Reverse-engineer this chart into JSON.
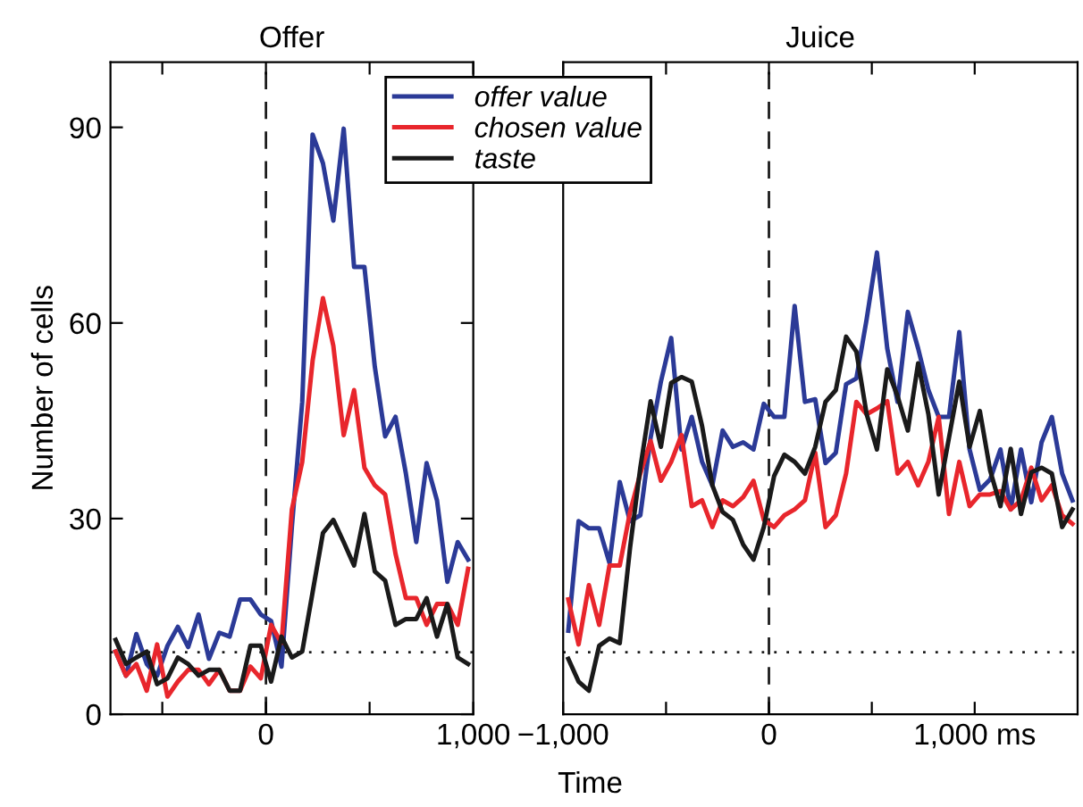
{
  "chart_data": [
    {
      "type": "line",
      "title": "Offer",
      "ylabel": "Number of cells",
      "xlabel": "Time",
      "x": [
        -725,
        -675,
        -625,
        -575,
        -525,
        -475,
        -425,
        -375,
        -325,
        -275,
        -225,
        -175,
        -125,
        -75,
        -25,
        25,
        75,
        125,
        175,
        225,
        275,
        325,
        375,
        425,
        475,
        525,
        575,
        625,
        675,
        725,
        775,
        825,
        875,
        925,
        975
      ],
      "series": [
        {
          "name": "offer value",
          "color": "#2b3a97",
          "values": [
            9.6,
            5.9,
            12.3,
            7.7,
            5.9,
            10.5,
            13.4,
            10.3,
            15.3,
            8.5,
            12.5,
            11.9,
            17.6,
            17.6,
            15.3,
            14.3,
            7.3,
            28.7,
            47.9,
            88.9,
            84.5,
            75.7,
            89.8,
            68.6,
            68.6,
            53.3,
            42.6,
            45.6,
            36.9,
            26.4,
            38.5,
            32.8,
            20.3,
            26.4,
            23.7
          ]
        },
        {
          "name": "chosen value",
          "color": "#e8262c",
          "values": [
            9.6,
            5.9,
            7.7,
            3.6,
            10.7,
            2.7,
            5.0,
            6.8,
            6.8,
            4.6,
            6.8,
            3.6,
            3.6,
            7.3,
            5.5,
            13.7,
            10.9,
            31.4,
            38.7,
            54.2,
            63.8,
            56.5,
            42.8,
            49.7,
            37.8,
            35.1,
            33.7,
            24.6,
            17.8,
            17.8,
            13.7,
            16.9,
            16.9,
            13.7,
            22.3
          ]
        },
        {
          "name": "taste",
          "color": "#1a1a1a",
          "values": [
            11.4,
            7.7,
            8.7,
            9.6,
            4.6,
            5.5,
            8.7,
            7.7,
            5.9,
            6.8,
            6.8,
            3.6,
            3.6,
            10.5,
            10.5,
            5.0,
            11.9,
            8.7,
            9.6,
            18.7,
            27.8,
            29.8,
            26.4,
            22.8,
            30.7,
            21.9,
            20.5,
            13.7,
            14.6,
            14.6,
            17.8,
            11.9,
            16.9,
            8.7,
            7.7
          ]
        }
      ],
      "xlim": [
        -750,
        1000
      ],
      "xticks": [
        {
          "value": -500,
          "label": null
        },
        0,
        {
          "value": 500,
          "label": null
        },
        {
          "value": 1000,
          "label": "1,000"
        }
      ],
      "ylim": [
        0,
        100
      ],
      "yticks": [
        0,
        30,
        60,
        90
      ],
      "ref_lines": [
        {
          "axis": "x",
          "value": 0,
          "color": "#1a1a1a",
          "line_style": "dashed"
        },
        {
          "axis": "y",
          "value": 9.5,
          "color": "#1a1a1a",
          "line_style": "dotted"
        }
      ],
      "legend": "top right",
      "grid": false,
      "marker": "none",
      "line_style": "solid"
    },
    {
      "type": "line",
      "title": "Juice",
      "x": [
        -975,
        -925,
        -875,
        -825,
        -775,
        -725,
        -675,
        -625,
        -575,
        -525,
        -475,
        -425,
        -375,
        -325,
        -275,
        -225,
        -175,
        -125,
        -75,
        -25,
        25,
        75,
        125,
        175,
        225,
        275,
        325,
        375,
        425,
        475,
        525,
        575,
        625,
        675,
        725,
        775,
        825,
        875,
        925,
        975,
        1025,
        1075,
        1125,
        1175,
        1225,
        1275,
        1325,
        1375,
        1425,
        1475
      ],
      "series": [
        {
          "color": "#2b3a97",
          "values": [
            12.8,
            29.6,
            28.5,
            28.5,
            23.2,
            35.6,
            29.6,
            30.5,
            42.4,
            51.0,
            57.7,
            40.6,
            45.6,
            38.7,
            35.1,
            43.5,
            41.0,
            41.7,
            40.6,
            47.6,
            45.6,
            45.6,
            62.6,
            47.9,
            48.3,
            38.5,
            40.1,
            50.6,
            51.5,
            60.6,
            70.8,
            56.1,
            47.9,
            61.7,
            56.1,
            49.7,
            45.6,
            45.6,
            58.6,
            40.6,
            34.4,
            36.0,
            40.6,
            31.4,
            40.6,
            32.5,
            41.7,
            45.6,
            36.9,
            32.8
          ]
        },
        {
          "color": "#e8262c",
          "values": [
            17.6,
            10.7,
            19.8,
            13.7,
            22.8,
            22.8,
            31.0,
            36.9,
            41.9,
            35.8,
            38.7,
            42.8,
            31.9,
            32.8,
            28.7,
            32.8,
            31.9,
            33.3,
            35.8,
            29.8,
            28.7,
            30.5,
            31.4,
            32.8,
            40.1,
            28.7,
            30.5,
            36.9,
            47.9,
            46.0,
            46.9,
            48.0,
            36.9,
            38.7,
            35.1,
            38.7,
            45.6,
            30.7,
            38.7,
            31.9,
            33.7,
            33.7,
            34.2,
            31.4,
            32.8,
            37.8,
            32.8,
            35.1,
            30.5,
            29.2
          ]
        },
        {
          "color": "#1a1a1a",
          "values": [
            8.5,
            5.0,
            3.6,
            10.5,
            11.6,
            10.9,
            25.5,
            37.8,
            48.0,
            41.0,
            50.8,
            51.7,
            51.0,
            44.2,
            35.1,
            31.0,
            29.8,
            26.0,
            23.7,
            28.7,
            36.5,
            39.8,
            38.7,
            36.9,
            41.0,
            47.9,
            49.7,
            57.9,
            55.6,
            46.0,
            40.6,
            52.9,
            48.8,
            43.5,
            53.8,
            46.0,
            33.7,
            42.4,
            51.0,
            41.0,
            46.5,
            37.4,
            31.9,
            40.7,
            30.7,
            37.1,
            37.8,
            36.9,
            28.7,
            31.4
          ]
        }
      ],
      "xlim": [
        -1000,
        1500
      ],
      "xticks": [
        {
          "value": -1000,
          "label": "−1,000"
        },
        {
          "value": -500,
          "label": null
        },
        0,
        {
          "value": 500,
          "label": null
        },
        {
          "value": 1000,
          "label": "1,000 ms"
        }
      ],
      "ylim": [
        0,
        100
      ],
      "tick_labels": "x",
      "ref_lines": [
        {
          "axis": "x",
          "value": 0,
          "color": "#1a1a1a",
          "line_style": "dashed"
        },
        {
          "axis": "y",
          "value": 9.5,
          "color": "#1a1a1a",
          "line_style": "dotted"
        }
      ],
      "grid": false,
      "marker": "none",
      "line_style": "solid"
    }
  ]
}
